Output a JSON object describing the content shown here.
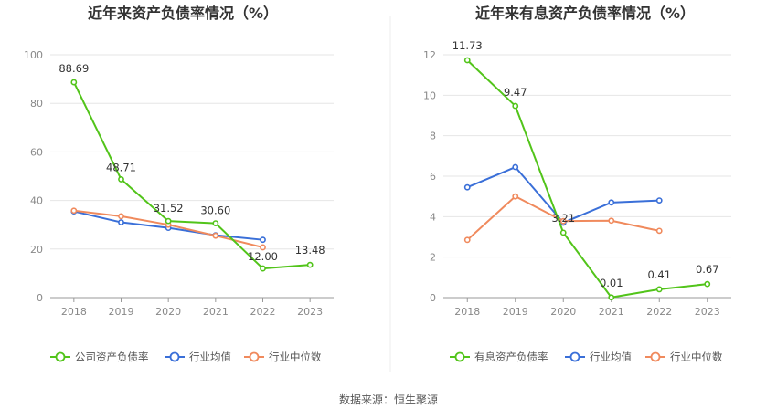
{
  "source_text": "数据来源：恒生聚源",
  "chart_data": [
    {
      "type": "line",
      "title": "近年来资产负债率情况（%）",
      "categories": [
        "2018",
        "2019",
        "2020",
        "2021",
        "2022",
        "2023"
      ],
      "ylim": [
        0,
        100
      ],
      "yticks": [
        0,
        20,
        40,
        60,
        80,
        100
      ],
      "grid": true,
      "legend_position": "bottom",
      "series": [
        {
          "name": "公司资产负债率",
          "color": "#52c41a",
          "values": [
            88.69,
            48.71,
            31.52,
            30.6,
            12.0,
            13.48
          ],
          "labels": [
            "88.69",
            "48.71",
            "31.52",
            "30.60",
            "12.00",
            "13.48"
          ]
        },
        {
          "name": "行业均值",
          "color": "#3a6fd8",
          "values": [
            35.5,
            31.0,
            28.7,
            25.7,
            23.8,
            null
          ]
        },
        {
          "name": "行业中位数",
          "color": "#f08a5d",
          "values": [
            35.8,
            33.5,
            30.0,
            25.5,
            20.7,
            null
          ]
        }
      ]
    },
    {
      "type": "line",
      "title": "近年来有息资产负债率情况（%）",
      "categories": [
        "2018",
        "2019",
        "2020",
        "2021",
        "2022",
        "2023"
      ],
      "ylim": [
        0,
        12
      ],
      "yticks": [
        0,
        2,
        4,
        6,
        8,
        10,
        12
      ],
      "grid": true,
      "legend_position": "bottom",
      "series": [
        {
          "name": "有息资产负债率",
          "color": "#52c41a",
          "values": [
            11.73,
            9.47,
            3.21,
            0.01,
            0.41,
            0.67
          ],
          "labels": [
            "11.73",
            "9.47",
            "3.21",
            "0.01",
            "0.41",
            "0.67"
          ]
        },
        {
          "name": "行业均值",
          "color": "#3a6fd8",
          "values": [
            5.45,
            6.45,
            3.7,
            4.7,
            4.8,
            null
          ]
        },
        {
          "name": "行业中位数",
          "color": "#f08a5d",
          "values": [
            2.85,
            5.0,
            3.78,
            3.8,
            3.3,
            null
          ]
        }
      ]
    }
  ]
}
